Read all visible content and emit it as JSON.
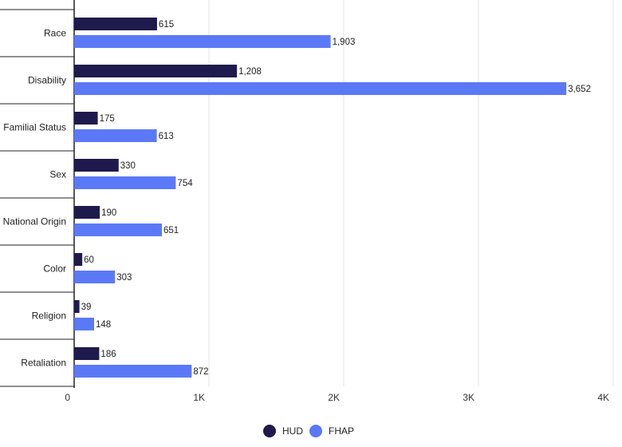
{
  "chart_data": {
    "type": "bar",
    "orientation": "horizontal",
    "categories": [
      "Race",
      "Disability",
      "Familial Status",
      "Sex",
      "National Origin",
      "Color",
      "Religion",
      "Retaliation"
    ],
    "series": [
      {
        "name": "HUD",
        "values": [
          615,
          1208,
          175,
          330,
          190,
          60,
          39,
          186
        ],
        "value_labels": [
          "615",
          "1,208",
          "175",
          "330",
          "190",
          "60",
          "39",
          "186"
        ],
        "color": "#1e1a4d"
      },
      {
        "name": "FHAP",
        "values": [
          1903,
          3652,
          613,
          754,
          651,
          303,
          148,
          872
        ],
        "value_labels": [
          "1,903",
          "3,652",
          "613",
          "754",
          "651",
          "303",
          "148",
          "872"
        ],
        "color": "#5b79f7"
      }
    ],
    "xlim": [
      0,
      4000
    ],
    "x_ticks": [
      0,
      1000,
      2000,
      3000,
      4000
    ],
    "x_tick_labels": [
      "0",
      "1K",
      "2K",
      "3K",
      "4K"
    ],
    "grid": "vertical",
    "legend_position": "bottom-center",
    "title": "",
    "xlabel": "",
    "ylabel": ""
  }
}
